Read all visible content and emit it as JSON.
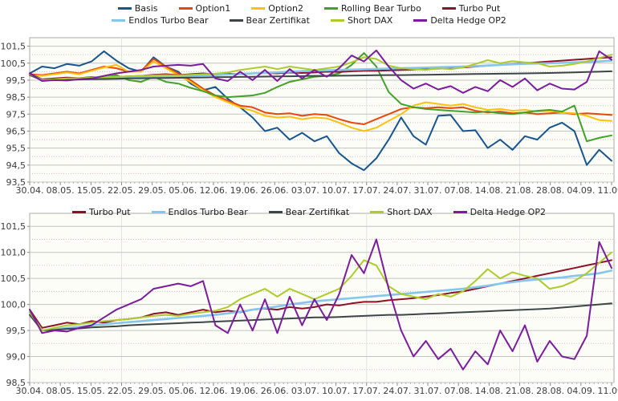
{
  "page": {
    "background": "#ffffff"
  },
  "chart_data": [
    {
      "type": "line",
      "title": "",
      "legend_position": "top",
      "legend_rows": [
        [
          "Basis",
          "Option1",
          "Option2",
          "Rolling Bear Turbo",
          "Turbo Put"
        ],
        [
          "Endlos Turbo Bear",
          "Bear Zertifikat",
          "Short DAX",
          "Delta Hedge OP2"
        ]
      ],
      "x_labels": [
        "30.04.",
        "08.05.",
        "15.05.",
        "22.05.",
        "29.05.",
        "05.06.",
        "12.06.",
        "19.06.",
        "26.06.",
        "03.07.",
        "10.07.",
        "17.07.",
        "24.07.",
        "31.07.",
        "07.08.",
        "14.08.",
        "21.08.",
        "28.08.",
        "04.09.",
        "11.09."
      ],
      "ylim": [
        93.5,
        102.0
      ],
      "y_ticks": [
        101.5,
        100.5,
        99.5,
        98.5,
        97.5,
        96.5,
        95.5,
        94.5,
        93.5
      ],
      "y_tick_labels": [
        "101,5",
        "100,5",
        "99,5",
        "98,5",
        "97,5",
        "96,5",
        "95,5",
        "94,5",
        "93,5"
      ],
      "y_minor": [
        101.0,
        100.0,
        99.0,
        98.0,
        97.0,
        96.0,
        95.0,
        94.0
      ],
      "vertical_gridlines_at_label": [
        3,
        11,
        16
      ],
      "grid": "horizontal major solid, minor dotted",
      "plot_bg": "#fdfdf7",
      "grid_color": "#c2c2c2",
      "minor_grid_color": "#d8bcd4",
      "series": [
        {
          "name": "Basis",
          "color": "#17558F",
          "values": [
            99.9,
            100.3,
            100.2,
            100.45,
            100.35,
            100.6,
            101.2,
            100.65,
            100.2,
            100.0,
            100.85,
            100.3,
            100.0,
            99.3,
            98.9,
            99.1,
            98.4,
            97.9,
            97.3,
            96.5,
            96.7,
            96.0,
            96.4,
            95.9,
            96.2,
            95.2,
            94.6,
            94.2,
            94.9,
            96.0,
            97.3,
            96.2,
            95.7,
            97.4,
            97.45,
            96.5,
            96.55,
            95.5,
            96.0,
            95.4,
            96.2,
            96.0,
            96.7,
            97.0,
            96.5,
            94.5,
            95.4,
            94.75
          ]
        },
        {
          "name": "Option1",
          "color": "#E7490C",
          "values": [
            99.85,
            99.8,
            99.9,
            100.0,
            99.9,
            100.1,
            100.3,
            100.2,
            100.0,
            100.05,
            100.75,
            100.3,
            99.9,
            99.5,
            99.0,
            98.6,
            98.3,
            98.0,
            97.9,
            97.6,
            97.5,
            97.55,
            97.4,
            97.5,
            97.45,
            97.2,
            97.0,
            96.9,
            97.2,
            97.5,
            97.8,
            97.9,
            97.85,
            97.9,
            97.85,
            97.9,
            97.7,
            97.6,
            97.65,
            97.55,
            97.6,
            97.5,
            97.55,
            97.6,
            97.5,
            97.55,
            97.5,
            97.45
          ]
        },
        {
          "name": "Option2",
          "color": "#FDC10D",
          "values": [
            99.8,
            99.75,
            99.85,
            99.95,
            99.85,
            100.05,
            100.25,
            100.4,
            100.0,
            100.0,
            100.6,
            100.2,
            99.8,
            99.4,
            98.9,
            98.5,
            98.2,
            97.9,
            97.7,
            97.4,
            97.3,
            97.35,
            97.2,
            97.3,
            97.25,
            97.0,
            96.7,
            96.5,
            96.7,
            97.1,
            97.5,
            98.0,
            98.2,
            98.1,
            98.0,
            98.1,
            97.9,
            97.75,
            97.8,
            97.7,
            97.75,
            97.65,
            97.7,
            97.6,
            97.55,
            97.4,
            97.15,
            97.1
          ]
        },
        {
          "name": "Rolling Bear Turbo",
          "color": "#42A228",
          "values": [
            99.8,
            99.5,
            99.55,
            99.6,
            99.55,
            99.6,
            99.65,
            99.8,
            99.5,
            99.4,
            99.7,
            99.4,
            99.3,
            99.05,
            98.85,
            98.6,
            98.5,
            98.55,
            98.6,
            98.75,
            99.1,
            99.4,
            99.55,
            99.7,
            99.75,
            99.9,
            100.4,
            101.1,
            100.3,
            98.8,
            98.1,
            97.9,
            97.8,
            97.75,
            97.7,
            97.65,
            97.6,
            97.65,
            97.55,
            97.5,
            97.6,
            97.7,
            97.75,
            97.65,
            98.0,
            95.9,
            96.1,
            96.25
          ]
        },
        {
          "name": "Turbo Put",
          "color": "#8C1127",
          "values": [
            99.9,
            99.55,
            99.6,
            99.65,
            99.62,
            99.68,
            99.65,
            99.7,
            99.72,
            99.75,
            99.82,
            99.85,
            99.8,
            99.85,
            99.9,
            99.85,
            99.88,
            99.85,
            99.9,
            99.92,
            99.9,
            99.95,
            99.92,
            99.95,
            100.0,
            99.98,
            100.02,
            100.05,
            100.05,
            100.08,
            100.1,
            100.12,
            100.15,
            100.18,
            100.22,
            100.25,
            100.3,
            100.35,
            100.4,
            100.45,
            100.5,
            100.55,
            100.6,
            100.65,
            100.7,
            100.75,
            100.8,
            100.85
          ]
        },
        {
          "name": "Endlos Turbo Bear",
          "color": "#83C7EC",
          "width": 2.6,
          "values": [
            99.85,
            99.5,
            99.52,
            99.55,
            99.57,
            99.6,
            99.62,
            99.64,
            99.66,
            99.68,
            99.7,
            99.72,
            99.74,
            99.76,
            99.78,
            99.8,
            99.83,
            99.86,
            99.9,
            99.93,
            99.96,
            100.0,
            100.03,
            100.06,
            100.08,
            100.1,
            100.12,
            100.14,
            100.16,
            100.18,
            100.2,
            100.22,
            100.24,
            100.26,
            100.28,
            100.3,
            100.33,
            100.36,
            100.4,
            100.43,
            100.46,
            100.48,
            100.5,
            100.52,
            100.55,
            100.57,
            100.6,
            100.65
          ]
        },
        {
          "name": "Bear Zertifikat",
          "color": "#3C4646",
          "values": [
            99.8,
            99.5,
            99.51,
            99.53,
            99.54,
            99.56,
            99.57,
            99.58,
            99.6,
            99.61,
            99.62,
            99.63,
            99.64,
            99.65,
            99.66,
            99.67,
            99.68,
            99.69,
            99.7,
            99.71,
            99.72,
            99.73,
            99.74,
            99.75,
            99.75,
            99.76,
            99.77,
            99.78,
            99.79,
            99.8,
            99.8,
            99.81,
            99.82,
            99.83,
            99.84,
            99.85,
            99.86,
            99.87,
            99.88,
            99.89,
            99.9,
            99.91,
            99.92,
            99.94,
            99.96,
            99.98,
            100.0,
            100.02
          ]
        },
        {
          "name": "Short DAX",
          "color": "#ADCB2C",
          "values": [
            99.85,
            99.5,
            99.55,
            99.6,
            99.62,
            99.65,
            99.68,
            99.7,
            99.72,
            99.75,
            99.78,
            99.8,
            99.78,
            99.82,
            99.85,
            99.88,
            99.95,
            100.1,
            100.2,
            100.3,
            100.15,
            100.3,
            100.2,
            100.1,
            100.2,
            100.3,
            100.55,
            100.85,
            100.75,
            100.35,
            100.2,
            100.15,
            100.1,
            100.2,
            100.15,
            100.25,
            100.45,
            100.68,
            100.5,
            100.62,
            100.55,
            100.5,
            100.3,
            100.35,
            100.45,
            100.6,
            100.8,
            101.0
          ]
        },
        {
          "name": "Delta Hedge OP2",
          "color": "#7A1C9C",
          "values": [
            99.9,
            99.45,
            99.5,
            99.48,
            99.55,
            99.6,
            99.75,
            99.9,
            100.0,
            100.1,
            100.3,
            100.35,
            100.4,
            100.35,
            100.45,
            99.6,
            99.45,
            100.0,
            99.5,
            100.1,
            99.45,
            100.15,
            99.6,
            100.1,
            99.7,
            100.2,
            100.95,
            100.6,
            101.25,
            100.3,
            99.5,
            99.0,
            99.3,
            98.95,
            99.15,
            98.75,
            99.1,
            98.85,
            99.5,
            99.1,
            99.6,
            98.9,
            99.3,
            99.0,
            98.95,
            99.4,
            101.2,
            100.7
          ]
        }
      ]
    },
    {
      "type": "line",
      "title": "",
      "legend_position": "top",
      "legend_rows": [
        [
          "Turbo Put",
          "Endlos Turbo Bear",
          "Bear Zertifikat",
          "Short DAX",
          "Delta Hedge OP2"
        ]
      ],
      "x_labels": [
        "30.04.",
        "08.05.",
        "15.05.",
        "22.05.",
        "29.05.",
        "05.06.",
        "12.06.",
        "19.06.",
        "26.06.",
        "03.07.",
        "10.07.",
        "17.07.",
        "24.07.",
        "31.07.",
        "07.08.",
        "14.08.",
        "21.08.",
        "28.08.",
        "04.09.",
        "11.09."
      ],
      "ylim": [
        98.5,
        101.75
      ],
      "y_ticks": [
        101.5,
        101.0,
        100.5,
        100.0,
        99.5,
        99.0,
        98.5
      ],
      "y_tick_labels": [
        "101,5",
        "101,0",
        "100,5",
        "100,0",
        "99,5",
        "99,0",
        "98,5"
      ],
      "y_minor": [
        101.25,
        100.75,
        100.25,
        99.75,
        99.25,
        98.75
      ],
      "vertical_gridlines_at_label": [
        3,
        11,
        16
      ],
      "grid": "horizontal major solid, minor dotted",
      "plot_bg": "#fdfdf7",
      "grid_color": "#c2c2c2",
      "minor_grid_color": "#d8bcd4",
      "series": [
        {
          "name": "Turbo Put",
          "color": "#8C1127",
          "values": [
            99.9,
            99.55,
            99.6,
            99.65,
            99.62,
            99.68,
            99.65,
            99.7,
            99.72,
            99.75,
            99.82,
            99.85,
            99.8,
            99.85,
            99.9,
            99.85,
            99.88,
            99.85,
            99.9,
            99.92,
            99.9,
            99.95,
            99.92,
            99.95,
            100.0,
            99.98,
            100.02,
            100.05,
            100.05,
            100.08,
            100.1,
            100.12,
            100.15,
            100.18,
            100.22,
            100.25,
            100.3,
            100.35,
            100.4,
            100.45,
            100.5,
            100.55,
            100.6,
            100.65,
            100.7,
            100.75,
            100.8,
            100.85
          ]
        },
        {
          "name": "Endlos Turbo Bear",
          "color": "#83C7EC",
          "width": 2.6,
          "values": [
            99.85,
            99.5,
            99.52,
            99.55,
            99.57,
            99.6,
            99.62,
            99.64,
            99.66,
            99.68,
            99.7,
            99.72,
            99.74,
            99.76,
            99.78,
            99.8,
            99.83,
            99.86,
            99.9,
            99.93,
            99.96,
            100.0,
            100.03,
            100.06,
            100.08,
            100.1,
            100.12,
            100.14,
            100.16,
            100.18,
            100.2,
            100.22,
            100.24,
            100.26,
            100.28,
            100.3,
            100.33,
            100.36,
            100.4,
            100.43,
            100.46,
            100.48,
            100.5,
            100.52,
            100.55,
            100.57,
            100.6,
            100.65
          ]
        },
        {
          "name": "Bear Zertifikat",
          "color": "#3C4646",
          "values": [
            99.8,
            99.5,
            99.51,
            99.53,
            99.54,
            99.56,
            99.57,
            99.58,
            99.6,
            99.61,
            99.62,
            99.63,
            99.64,
            99.65,
            99.66,
            99.67,
            99.68,
            99.69,
            99.7,
            99.71,
            99.72,
            99.73,
            99.74,
            99.75,
            99.75,
            99.76,
            99.77,
            99.78,
            99.79,
            99.8,
            99.8,
            99.81,
            99.82,
            99.83,
            99.84,
            99.85,
            99.86,
            99.87,
            99.88,
            99.89,
            99.9,
            99.91,
            99.92,
            99.94,
            99.96,
            99.98,
            100.0,
            100.02
          ]
        },
        {
          "name": "Short DAX",
          "color": "#ADCB2C",
          "values": [
            99.85,
            99.5,
            99.55,
            99.6,
            99.62,
            99.65,
            99.68,
            99.7,
            99.72,
            99.75,
            99.78,
            99.8,
            99.78,
            99.82,
            99.85,
            99.88,
            99.95,
            100.1,
            100.2,
            100.3,
            100.15,
            100.3,
            100.2,
            100.1,
            100.2,
            100.3,
            100.55,
            100.85,
            100.75,
            100.35,
            100.2,
            100.15,
            100.1,
            100.2,
            100.15,
            100.25,
            100.45,
            100.68,
            100.5,
            100.62,
            100.55,
            100.5,
            100.3,
            100.35,
            100.45,
            100.6,
            100.8,
            101.0
          ]
        },
        {
          "name": "Delta Hedge OP2",
          "color": "#7A1C9C",
          "values": [
            99.9,
            99.45,
            99.5,
            99.48,
            99.55,
            99.6,
            99.75,
            99.9,
            100.0,
            100.1,
            100.3,
            100.35,
            100.4,
            100.35,
            100.45,
            99.6,
            99.45,
            100.0,
            99.5,
            100.1,
            99.45,
            100.15,
            99.6,
            100.1,
            99.7,
            100.2,
            100.95,
            100.6,
            101.25,
            100.3,
            99.5,
            99.0,
            99.3,
            98.95,
            99.15,
            98.75,
            99.1,
            98.85,
            99.5,
            99.1,
            99.6,
            98.9,
            99.3,
            99.0,
            98.95,
            99.4,
            101.2,
            100.7
          ]
        }
      ]
    }
  ]
}
